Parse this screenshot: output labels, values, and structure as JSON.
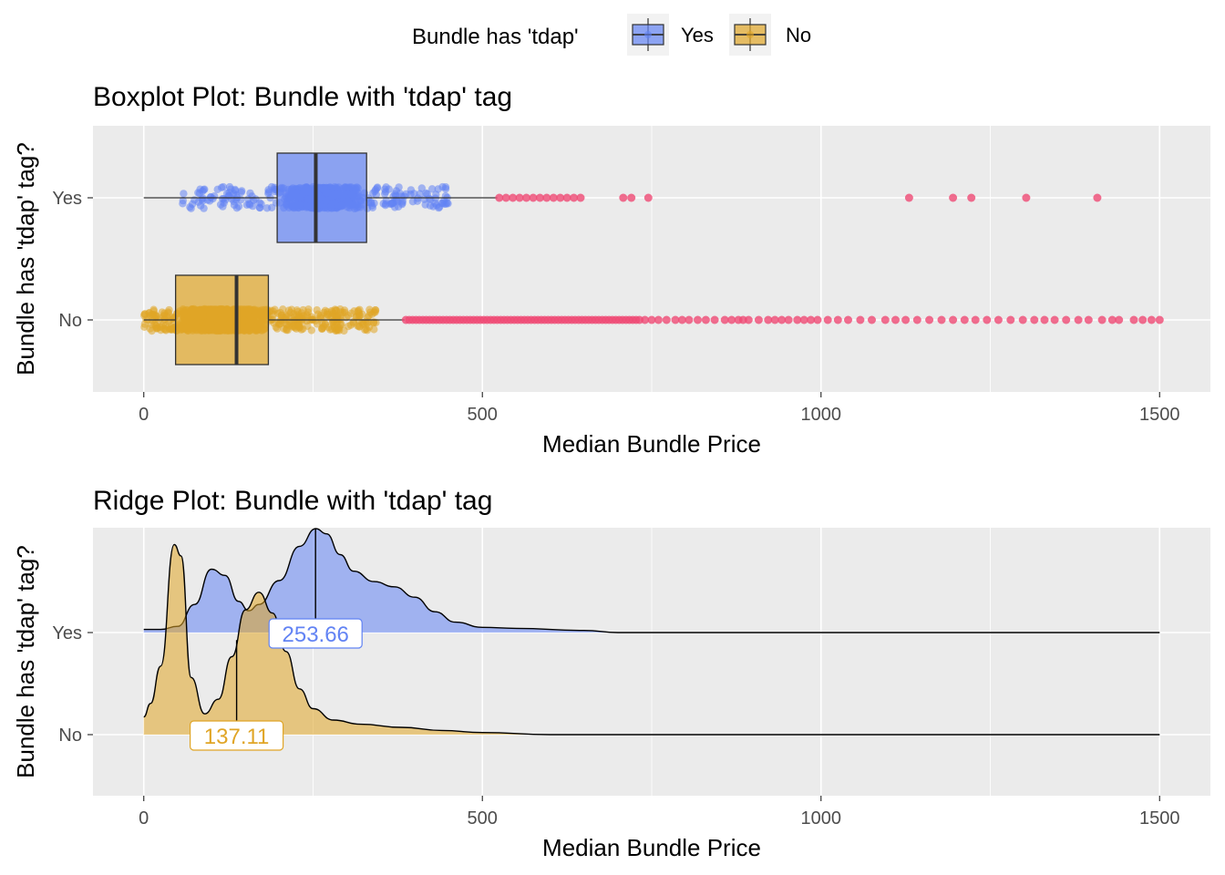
{
  "legend": {
    "title": "Bundle has 'tdap'",
    "items": [
      {
        "label": "Yes",
        "color": "#6283f4"
      },
      {
        "label": "No",
        "color": "#e0a526"
      }
    ]
  },
  "colors": {
    "yes": "#6283f4",
    "no": "#e0a526",
    "outlier": "#ef4a74",
    "panel": "#ebebeb",
    "grid": "#ffffff"
  },
  "chart_data": [
    {
      "type": "box",
      "title": "Boxplot Plot: Bundle with 'tdap' tag",
      "xlabel": "Median Bundle Price",
      "ylabel": "Bundle has 'tdap' tag?",
      "xlim": [
        -75,
        1575
      ],
      "xticks": [
        0,
        500,
        1000,
        1500
      ],
      "categories": [
        "Yes",
        "No"
      ],
      "series": [
        {
          "name": "Yes",
          "min": 0,
          "q1": 197,
          "median": 254,
          "q3": 329,
          "max": 522,
          "jitter_range": [
            55,
            450
          ],
          "outliers": [
            525,
            535,
            545,
            555,
            565,
            575,
            585,
            595,
            605,
            615,
            625,
            635,
            645,
            708,
            720,
            745,
            1130,
            1195,
            1222,
            1303,
            1408
          ]
        },
        {
          "name": "No",
          "min": 0,
          "q1": 47,
          "median": 137,
          "q3": 184,
          "max": 385,
          "jitter_range": [
            0,
            345
          ],
          "outliers": [
            387,
            392,
            397,
            402,
            407,
            412,
            417,
            422,
            427,
            432,
            437,
            442,
            447,
            452,
            457,
            462,
            467,
            472,
            477,
            482,
            487,
            492,
            497,
            502,
            507,
            512,
            517,
            522,
            527,
            532,
            537,
            542,
            547,
            552,
            557,
            562,
            567,
            572,
            577,
            582,
            587,
            592,
            597,
            602,
            607,
            612,
            617,
            622,
            627,
            632,
            637,
            642,
            647,
            652,
            657,
            662,
            667,
            672,
            677,
            682,
            687,
            692,
            697,
            702,
            707,
            712,
            717,
            722,
            727,
            732,
            740,
            750,
            760,
            772,
            785,
            795,
            805,
            818,
            830,
            843,
            858,
            868,
            878,
            885,
            893,
            908,
            922,
            932,
            942,
            952,
            965,
            975,
            985,
            995,
            1010,
            1025,
            1040,
            1058,
            1075,
            1095,
            1110,
            1125,
            1142,
            1160,
            1178,
            1195,
            1212,
            1228,
            1245,
            1262,
            1280,
            1298,
            1315,
            1330,
            1345,
            1362,
            1380,
            1395,
            1415,
            1430,
            1440,
            1462,
            1475,
            1488,
            1500
          ]
        }
      ]
    },
    {
      "type": "ridge",
      "title": "Ridge Plot: Bundle with 'tdap' tag",
      "xlabel": "Median Bundle Price",
      "ylabel": "Bundle has 'tdap' tag?",
      "xlim": [
        -75,
        1575
      ],
      "xticks": [
        0,
        500,
        1000,
        1500
      ],
      "categories": [
        "Yes",
        "No"
      ],
      "series": [
        {
          "name": "Yes",
          "median": 253.66,
          "median_label": "253.66",
          "density": [
            [
              0,
              0.03
            ],
            [
              25,
              0.03
            ],
            [
              50,
              0.06
            ],
            [
              75,
              0.27
            ],
            [
              100,
              0.61
            ],
            [
              120,
              0.55
            ],
            [
              140,
              0.3
            ],
            [
              155,
              0.21
            ],
            [
              170,
              0.27
            ],
            [
              200,
              0.5
            ],
            [
              230,
              0.83
            ],
            [
              254,
              1.0
            ],
            [
              270,
              0.95
            ],
            [
              290,
              0.75
            ],
            [
              310,
              0.59
            ],
            [
              340,
              0.49
            ],
            [
              370,
              0.44
            ],
            [
              400,
              0.34
            ],
            [
              430,
              0.2
            ],
            [
              460,
              0.1
            ],
            [
              500,
              0.05
            ],
            [
              550,
              0.04
            ],
            [
              650,
              0.02
            ],
            [
              700,
              0.0
            ],
            [
              1500,
              0.0
            ]
          ]
        },
        {
          "name": "No",
          "median": 137.11,
          "median_label": "137.11",
          "density": [
            [
              0,
              0.17
            ],
            [
              10,
              0.3
            ],
            [
              25,
              0.66
            ],
            [
              45,
              1.83
            ],
            [
              55,
              1.72
            ],
            [
              70,
              0.55
            ],
            [
              90,
              0.2
            ],
            [
              110,
              0.34
            ],
            [
              130,
              0.75
            ],
            [
              150,
              1.2
            ],
            [
              170,
              1.37
            ],
            [
              190,
              1.17
            ],
            [
              210,
              0.8
            ],
            [
              230,
              0.44
            ],
            [
              250,
              0.25
            ],
            [
              280,
              0.14
            ],
            [
              320,
              0.1
            ],
            [
              380,
              0.07
            ],
            [
              440,
              0.04
            ],
            [
              500,
              0.02
            ],
            [
              600,
              0.0
            ],
            [
              1500,
              0.0
            ]
          ]
        }
      ]
    }
  ]
}
